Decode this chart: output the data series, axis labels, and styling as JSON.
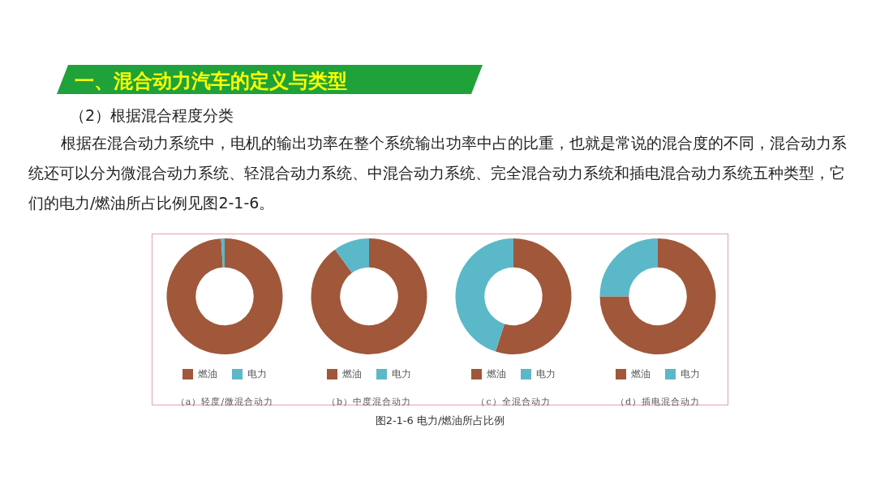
{
  "chart_data": [
    {
      "type": "donut",
      "title": "一、混合动力汽车的定义与类型",
      "subtitle": "（2）根据混合程度分类",
      "annotations": [
        "根据在混合动力系统中，电机的输出功率在整个系统输出功率中占的比重，也就是常说的混合度的不同，混合动力系统还可以分为微混合动力系统、轻混合动力系统、中混合动力系统、完全混合动力系统和插电混合动力系统五种类型，它们的电力/燃油所占比例见图2-1-6。",
        "图2-1-6  电力/燃油所占比例"
      ],
      "xlabel": "（a）轻度/微混合动力",
      "categories": [
        "燃油",
        "电力"
      ],
      "values": [
        99,
        1
      ],
      "colors": [
        "#a0573a",
        "#5bb8c8"
      ],
      "legend": "bottom"
    },
    {
      "type": "donut",
      "xlabel": "（b）中度混合动力",
      "categories": [
        "燃油",
        "电力"
      ],
      "values": [
        90,
        10
      ],
      "colors": [
        "#a0573a",
        "#5bb8c8"
      ],
      "legend": "bottom"
    },
    {
      "type": "donut",
      "xlabel": "（c）全混合动力",
      "categories": [
        "燃油",
        "电力"
      ],
      "values": [
        55,
        45
      ],
      "colors": [
        "#a0573a",
        "#5bb8c8"
      ],
      "legend": "bottom"
    },
    {
      "type": "donut",
      "xlabel": "（d）插电混合动力",
      "categories": [
        "燃油",
        "电力"
      ],
      "values": [
        75,
        25
      ],
      "colors": [
        "#a0573a",
        "#5bb8c8"
      ],
      "legend": "bottom"
    }
  ]
}
